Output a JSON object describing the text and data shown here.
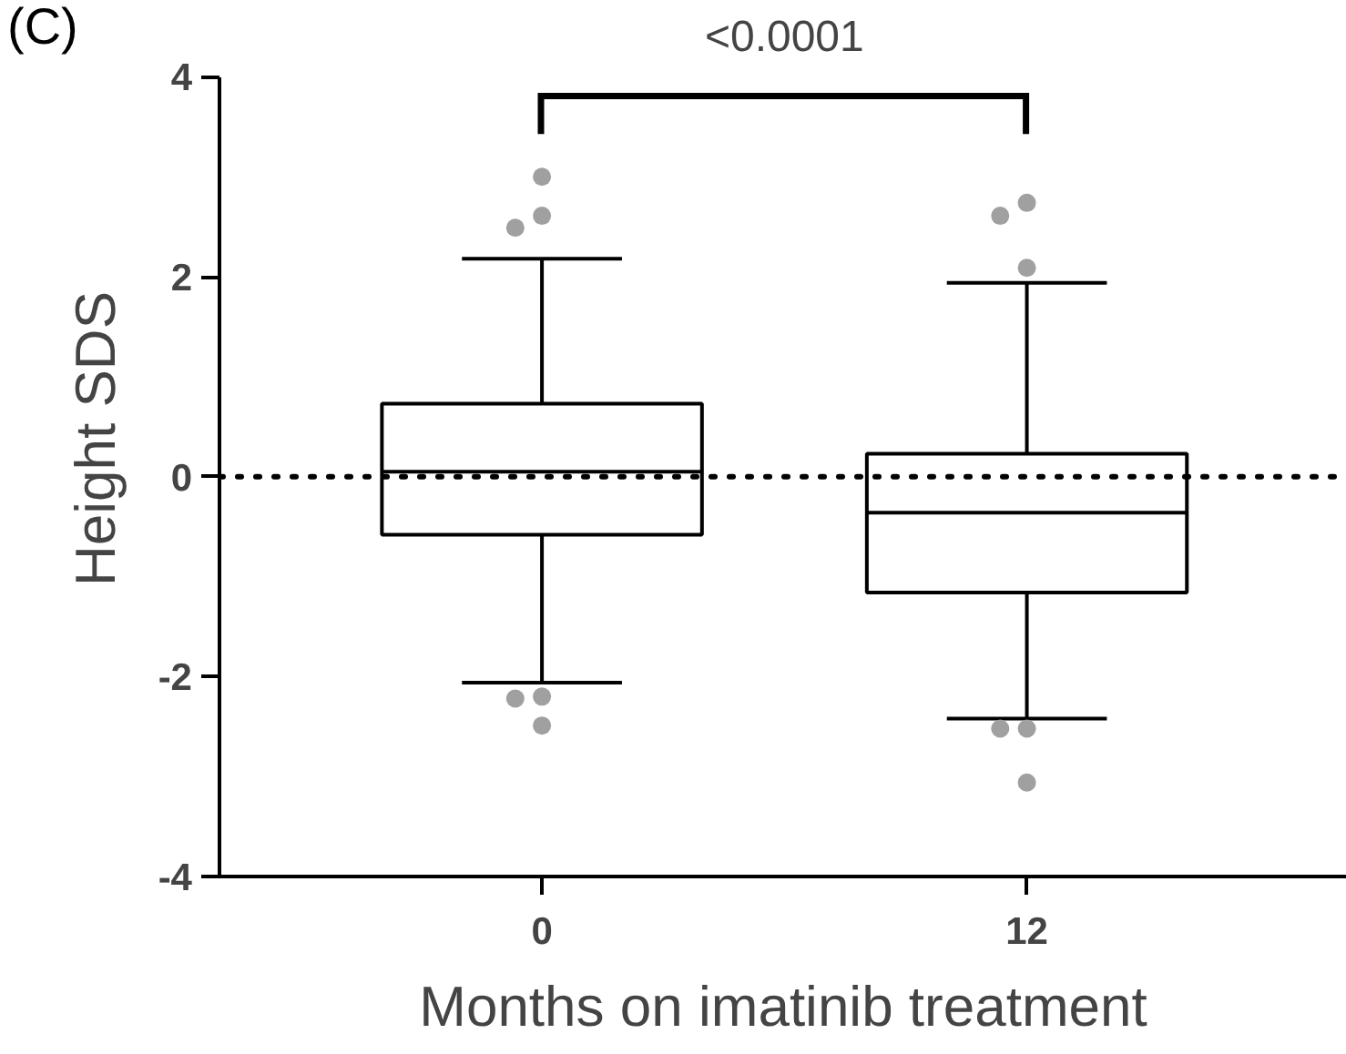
{
  "chart_data": {
    "type": "box",
    "categories": [
      "0",
      "12"
    ],
    "xlabel": "Months on imatinib treatment",
    "ylabel": "Height SDS",
    "ylim": [
      -4,
      4
    ],
    "yticks": [
      -4,
      -2,
      0,
      2,
      4
    ],
    "grid": false,
    "series": [
      {
        "color": "#000000",
        "boxes": [
          {
            "low": -2.06,
            "q1": -0.58,
            "median": 0.05,
            "q3": 0.73,
            "high": 2.18,
            "outliers": [
              3.0,
              2.61,
              2.49,
              -2.2,
              -2.22,
              -2.49
            ]
          },
          {
            "low": -2.42,
            "q1": -1.16,
            "median": -0.36,
            "q3": 0.23,
            "high": 1.94,
            "outliers": [
              2.74,
              2.61,
              2.09,
              -2.52,
              -2.52,
              -3.06
            ]
          }
        ]
      }
    ],
    "ref_lines": [
      {
        "axis": "y",
        "value": 0,
        "line_style": "dotted",
        "color": "#000000"
      }
    ],
    "annotations": [
      "(C)",
      "<0.0001"
    ]
  }
}
